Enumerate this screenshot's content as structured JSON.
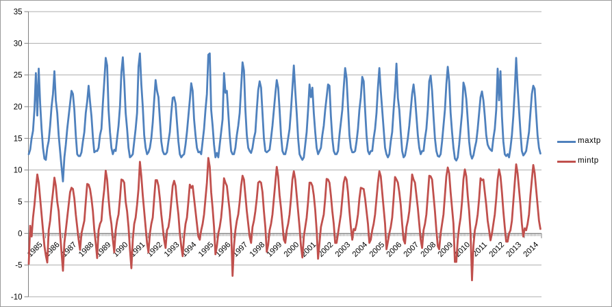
{
  "chart_data": {
    "type": "line",
    "title": "",
    "xlabel": "",
    "ylabel": "",
    "ylim": [
      -10,
      35
    ],
    "ytick_interval": 5,
    "yticks": [
      35,
      30,
      25,
      20,
      15,
      10,
      5,
      0,
      -5,
      -10
    ],
    "grid": true,
    "legend_position": "right",
    "x_unit": "month",
    "x_labels_shown": "years",
    "years": [
      "1985",
      "1986",
      "1987",
      "1988",
      "1989",
      "1990",
      "1991",
      "1992",
      "1993",
      "1994",
      "1995",
      "1996",
      "1997",
      "1998",
      "1999",
      "2000",
      "2001",
      "2002",
      "2003",
      "2004",
      "2005",
      "2006",
      "2007",
      "2008",
      "2009",
      "2010",
      "2011",
      "2012",
      "2013",
      "2014"
    ],
    "series": [
      {
        "name": "maxtp",
        "color": "#4F81BD",
        "values_by_year": [
          [
            12.5,
            13.2,
            15.0,
            16.2,
            19.5,
            25.3,
            18.6,
            26.0,
            20.5,
            16.5,
            13.5,
            11.8
          ],
          [
            11.6,
            13.5,
            14.6,
            17.0,
            20.0,
            22.0,
            25.6,
            21.0,
            19.0,
            15.5,
            13.0,
            10.5
          ],
          [
            8.2,
            12.0,
            14.0,
            16.5,
            18.5,
            20.5,
            22.5,
            22.0,
            19.5,
            15.5,
            12.5,
            12.2
          ],
          [
            12.2,
            12.8,
            14.5,
            16.0,
            19.0,
            20.8,
            23.3,
            20.8,
            18.5,
            15.2,
            12.8,
            13.0
          ],
          [
            13.0,
            13.5,
            15.5,
            16.5,
            20.5,
            24.0,
            27.7,
            26.5,
            19.5,
            16.0,
            13.5,
            12.5
          ],
          [
            13.2,
            13.0,
            15.0,
            17.0,
            20.0,
            25.4,
            27.8,
            24.0,
            19.0,
            16.5,
            13.5,
            12.0
          ],
          [
            12.2,
            12.5,
            14.5,
            16.5,
            19.0,
            26.3,
            28.4,
            23.5,
            20.0,
            15.5,
            13.5,
            12.5
          ],
          [
            12.8,
            13.5,
            15.0,
            17.5,
            21.0,
            24.2,
            22.5,
            21.5,
            18.0,
            14.5,
            13.0,
            12.5
          ],
          [
            12.5,
            12.8,
            14.5,
            16.0,
            19.0,
            21.4,
            21.5,
            20.5,
            17.5,
            14.5,
            12.5,
            12.0
          ],
          [
            12.3,
            12.5,
            14.0,
            16.0,
            18.5,
            21.0,
            23.7,
            22.5,
            18.0,
            15.5,
            13.5,
            12.8
          ],
          [
            12.9,
            12.5,
            14.5,
            16.5,
            19.5,
            22.0,
            28.2,
            28.4,
            19.5,
            17.0,
            14.0,
            12.0
          ],
          [
            12.7,
            12.0,
            14.0,
            16.0,
            18.0,
            25.3,
            22.2,
            22.5,
            19.0,
            15.5,
            13.0,
            12.5
          ],
          [
            12.5,
            13.5,
            15.5,
            17.0,
            19.0,
            23.0,
            27.0,
            25.7,
            19.5,
            15.5,
            13.5,
            13.0
          ],
          [
            12.7,
            13.5,
            15.0,
            16.0,
            19.5,
            22.6,
            24.0,
            23.0,
            19.0,
            15.0,
            13.0,
            12.8
          ],
          [
            13.0,
            13.2,
            15.0,
            17.0,
            19.5,
            22.0,
            24.2,
            23.0,
            19.5,
            15.5,
            13.0,
            12.5
          ],
          [
            12.5,
            13.5,
            15.0,
            16.5,
            19.5,
            23.0,
            26.5,
            22.5,
            19.0,
            15.0,
            12.5,
            12.0
          ],
          [
            11.6,
            12.0,
            14.0,
            16.0,
            19.5,
            23.5,
            21.5,
            23.0,
            19.0,
            16.0,
            13.5,
            12.5
          ],
          [
            13.0,
            13.5,
            15.5,
            17.0,
            19.5,
            21.5,
            23.5,
            23.3,
            18.5,
            15.0,
            13.0,
            12.5
          ],
          [
            12.5,
            13.0,
            15.5,
            17.5,
            19.5,
            23.0,
            26.1,
            24.5,
            20.0,
            15.5,
            13.5,
            12.8
          ],
          [
            12.8,
            13.0,
            14.5,
            16.5,
            19.5,
            21.5,
            24.7,
            24.0,
            19.5,
            15.5,
            13.0,
            12.5
          ],
          [
            13.0,
            13.0,
            15.0,
            16.5,
            19.0,
            23.0,
            26.1,
            22.5,
            19.5,
            16.5,
            13.5,
            12.5
          ],
          [
            12.0,
            12.5,
            14.5,
            16.0,
            19.5,
            22.5,
            26.8,
            21.4,
            19.5,
            16.0,
            13.0,
            12.0
          ],
          [
            12.3,
            13.5,
            15.0,
            17.0,
            19.5,
            22.0,
            23.5,
            21.5,
            18.5,
            15.5,
            13.5,
            12.5
          ],
          [
            13.0,
            13.0,
            15.0,
            16.5,
            19.5,
            24.0,
            24.9,
            22.5,
            18.5,
            15.0,
            13.0,
            12.2
          ],
          [
            12.1,
            12.5,
            14.5,
            17.0,
            19.5,
            23.5,
            26.3,
            24.0,
            19.0,
            16.0,
            13.5,
            11.8
          ],
          [
            11.5,
            12.0,
            14.0,
            16.5,
            19.0,
            23.8,
            23.0,
            21.2,
            18.0,
            14.5,
            12.5,
            11.8
          ],
          [
            12.3,
            13.5,
            14.5,
            16.5,
            19.0,
            21.5,
            22.4,
            21.0,
            18.5,
            15.5,
            14.0,
            13.5
          ],
          [
            13.2,
            13.0,
            15.0,
            16.5,
            19.5,
            26.0,
            21.0,
            25.6,
            18.5,
            14.5,
            12.5,
            12.2
          ],
          [
            12.5,
            12.0,
            13.5,
            15.5,
            18.5,
            22.5,
            27.7,
            23.1,
            19.5,
            16.0,
            13.0,
            12.3
          ],
          [
            12.6,
            13.0,
            14.5,
            16.0,
            19.0,
            22.0,
            23.3,
            22.8,
            19.0,
            15.5,
            13.5,
            12.6
          ]
        ]
      },
      {
        "name": "mintp",
        "color": "#C0504D",
        "values_by_year": [
          [
            -4.8,
            1.2,
            -0.5,
            2.5,
            4.5,
            7.0,
            9.3,
            8.0,
            5.5,
            3.0,
            0.5,
            -2.0
          ],
          [
            -3.5,
            -4.6,
            0.5,
            2.0,
            4.5,
            6.5,
            8.8,
            7.5,
            5.0,
            3.5,
            0.0,
            -3.0
          ],
          [
            -5.9,
            -1.5,
            0.5,
            2.5,
            4.5,
            6.5,
            7.2,
            7.0,
            5.5,
            3.0,
            1.0,
            -1.0
          ],
          [
            -2.6,
            0.0,
            1.0,
            2.0,
            5.0,
            7.8,
            7.7,
            7.0,
            5.5,
            3.5,
            0.5,
            -1.5
          ],
          [
            -3.9,
            0.5,
            1.5,
            2.0,
            5.0,
            7.0,
            9.9,
            8.5,
            5.5,
            3.0,
            1.5,
            -1.0
          ],
          [
            -3.0,
            0.5,
            2.0,
            3.0,
            5.5,
            8.5,
            8.4,
            8.0,
            5.0,
            3.5,
            1.0,
            -2.5
          ],
          [
            -5.5,
            -1.0,
            1.5,
            2.5,
            4.5,
            7.0,
            11.3,
            9.0,
            6.0,
            3.5,
            1.0,
            -1.5
          ],
          [
            -3.0,
            0.0,
            1.5,
            2.5,
            5.5,
            8.4,
            8.4,
            7.5,
            5.5,
            3.0,
            1.0,
            -1.0
          ],
          [
            -2.3,
            0.5,
            1.0,
            2.5,
            5.0,
            7.5,
            8.3,
            7.5,
            5.0,
            3.0,
            0.0,
            -2.0
          ],
          [
            -3.6,
            -0.5,
            1.5,
            2.5,
            5.0,
            7.7,
            7.2,
            7.5,
            5.5,
            3.5,
            1.5,
            -0.5
          ],
          [
            -1.0,
            0.5,
            1.5,
            3.0,
            5.5,
            8.0,
            11.9,
            10.5,
            6.5,
            4.0,
            1.0,
            -3.3
          ],
          [
            -2.0,
            0.0,
            1.0,
            2.5,
            5.0,
            8.7,
            8.0,
            7.5,
            5.5,
            3.5,
            0.5,
            -6.7
          ],
          [
            -2.0,
            0.5,
            2.0,
            3.0,
            5.0,
            7.5,
            9.1,
            8.5,
            6.0,
            3.5,
            1.5,
            -0.5
          ],
          [
            -1.5,
            1.0,
            2.0,
            3.5,
            5.5,
            8.0,
            8.2,
            8.0,
            6.5,
            3.5,
            1.0,
            -2.9
          ],
          [
            -1.8,
            0.5,
            1.5,
            3.0,
            5.5,
            8.0,
            10.5,
            9.0,
            6.0,
            4.0,
            1.5,
            -1.0
          ],
          [
            -1.5,
            0.5,
            1.5,
            3.0,
            5.5,
            8.5,
            9.8,
            8.5,
            6.0,
            3.5,
            1.0,
            -2.0
          ],
          [
            -3.8,
            -0.5,
            1.0,
            2.5,
            5.0,
            8.0,
            8.0,
            7.5,
            6.0,
            3.7,
            0.5,
            -4.0
          ],
          [
            -1.5,
            1.0,
            2.0,
            3.0,
            5.5,
            8.6,
            8.5,
            8.0,
            6.0,
            3.5,
            1.5,
            -1.5
          ],
          [
            -1.5,
            0.0,
            1.5,
            3.0,
            5.5,
            8.0,
            8.9,
            8.5,
            6.5,
            3.5,
            1.0,
            -1.0
          ],
          [
            0.7,
            0.5,
            1.5,
            3.0,
            5.5,
            7.2,
            7.1,
            7.0,
            5.5,
            3.5,
            1.5,
            -1.5
          ],
          [
            -1.0,
            0.5,
            1.5,
            3.0,
            5.5,
            8.0,
            9.8,
            9.0,
            6.5,
            4.0,
            1.5,
            -2.5
          ],
          [
            -1.3,
            0.0,
            1.0,
            2.5,
            5.5,
            8.9,
            8.5,
            8.0,
            6.5,
            4.5,
            1.5,
            -1.0
          ],
          [
            -1.6,
            1.0,
            2.0,
            3.5,
            6.0,
            9.3,
            8.5,
            8.0,
            6.0,
            4.0,
            1.5,
            -1.0
          ],
          [
            -2.3,
            0.5,
            1.5,
            3.0,
            6.0,
            9.1,
            9.0,
            8.5,
            6.0,
            3.5,
            0.5,
            -2.0
          ],
          [
            -2.5,
            0.0,
            1.5,
            3.0,
            6.0,
            9.0,
            10.4,
            9.5,
            6.5,
            4.0,
            1.5,
            -4.5
          ],
          [
            -4.5,
            -1.0,
            1.0,
            2.5,
            5.0,
            8.5,
            10.1,
            9.0,
            6.0,
            3.5,
            0.0,
            -7.4
          ],
          [
            -2.0,
            0.5,
            1.5,
            3.0,
            5.5,
            8.7,
            8.4,
            8.5,
            6.5,
            4.5,
            2.0,
            0.5
          ],
          [
            -1.1,
            0.0,
            1.5,
            3.0,
            5.5,
            8.5,
            10.1,
            9.0,
            6.5,
            3.5,
            1.0,
            -1.3
          ],
          [
            -1.3,
            0.0,
            0.5,
            2.0,
            5.0,
            8.0,
            10.9,
            9.5,
            7.0,
            4.5,
            1.5,
            -0.5
          ],
          [
            0.8,
            0.5,
            1.5,
            3.0,
            6.0,
            8.5,
            10.8,
            9.5,
            7.0,
            4.5,
            2.0,
            0.7
          ]
        ]
      }
    ],
    "colors": {
      "axis": "#7F7F7F",
      "gridline": "#ADADAD",
      "tick_label": "#000000",
      "background": "#FFFFFF"
    }
  }
}
